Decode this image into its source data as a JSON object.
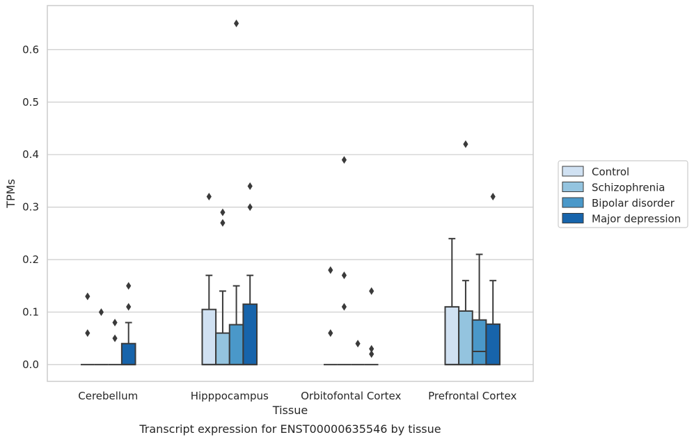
{
  "chart_data": {
    "type": "box",
    "title": "",
    "caption": "Transcript expression for ENST00000635546 by tissue",
    "xlabel": "Tissue",
    "ylabel": "TPMs",
    "ylim": [
      -0.032,
      0.684
    ],
    "yticks": [
      0.0,
      0.1,
      0.2,
      0.3,
      0.4,
      0.5,
      0.6
    ],
    "ytick_labels": [
      "0.0",
      "0.1",
      "0.2",
      "0.3",
      "0.4",
      "0.5",
      "0.6"
    ],
    "grid": "horizontal",
    "legend_position": "outside-right",
    "categories": [
      "Cerebellum",
      "Hipppocampus",
      "Orbitofontal Cortex",
      "Prefrontal Cortex"
    ],
    "series": [
      {
        "name": "Control",
        "color": "#d0e1f2",
        "boxes": [
          {
            "q1": 0.0,
            "median": 0.0,
            "q3": 0.0,
            "whislo": 0.0,
            "whishi": 0.0,
            "fliers": [
              0.13,
              0.06
            ]
          },
          {
            "q1": 0.0,
            "median": 0.0,
            "q3": 0.105,
            "whislo": 0.0,
            "whishi": 0.17,
            "fliers": [
              0.32
            ]
          },
          {
            "q1": 0.0,
            "median": 0.0,
            "q3": 0.0,
            "whislo": 0.0,
            "whishi": 0.0,
            "fliers": [
              0.18,
              0.06
            ]
          },
          {
            "q1": 0.0,
            "median": 0.0,
            "q3": 0.11,
            "whislo": 0.0,
            "whishi": 0.24,
            "fliers": []
          }
        ]
      },
      {
        "name": "Schizophrenia",
        "color": "#94c4df",
        "boxes": [
          {
            "q1": 0.0,
            "median": 0.0,
            "q3": 0.0,
            "whislo": 0.0,
            "whishi": 0.0,
            "fliers": [
              0.1
            ]
          },
          {
            "q1": 0.0,
            "median": 0.0,
            "q3": 0.06,
            "whislo": 0.0,
            "whishi": 0.14,
            "fliers": [
              0.29,
              0.27
            ]
          },
          {
            "q1": 0.0,
            "median": 0.0,
            "q3": 0.0,
            "whislo": 0.0,
            "whishi": 0.0,
            "fliers": [
              0.39,
              0.17,
              0.11
            ]
          },
          {
            "q1": 0.0,
            "median": 0.0,
            "q3": 0.102,
            "whislo": 0.0,
            "whishi": 0.16,
            "fliers": [
              0.42
            ]
          }
        ]
      },
      {
        "name": "Bipolar disorder",
        "color": "#4a98c9",
        "boxes": [
          {
            "q1": 0.0,
            "median": 0.0,
            "q3": 0.0,
            "whislo": 0.0,
            "whishi": 0.0,
            "fliers": [
              0.08,
              0.05
            ]
          },
          {
            "q1": 0.0,
            "median": 0.0,
            "q3": 0.076,
            "whislo": 0.0,
            "whishi": 0.15,
            "fliers": [
              0.65
            ]
          },
          {
            "q1": 0.0,
            "median": 0.0,
            "q3": 0.0,
            "whislo": 0.0,
            "whishi": 0.0,
            "fliers": [
              0.04
            ]
          },
          {
            "q1": 0.0,
            "median": 0.025,
            "q3": 0.085,
            "whislo": 0.0,
            "whishi": 0.21,
            "fliers": []
          }
        ]
      },
      {
        "name": "Major depression",
        "color": "#1764ab",
        "boxes": [
          {
            "q1": 0.0,
            "median": 0.0,
            "q3": 0.04,
            "whislo": 0.0,
            "whishi": 0.08,
            "fliers": [
              0.15,
              0.11
            ]
          },
          {
            "q1": 0.0,
            "median": 0.0,
            "q3": 0.115,
            "whislo": 0.0,
            "whishi": 0.17,
            "fliers": [
              0.34,
              0.3
            ]
          },
          {
            "q1": 0.0,
            "median": 0.0,
            "q3": 0.0,
            "whislo": 0.0,
            "whishi": 0.0,
            "fliers": [
              0.14,
              0.03,
              0.02
            ]
          },
          {
            "q1": 0.0,
            "median": 0.0,
            "q3": 0.077,
            "whislo": 0.0,
            "whishi": 0.16,
            "fliers": [
              0.32
            ]
          }
        ]
      }
    ]
  }
}
